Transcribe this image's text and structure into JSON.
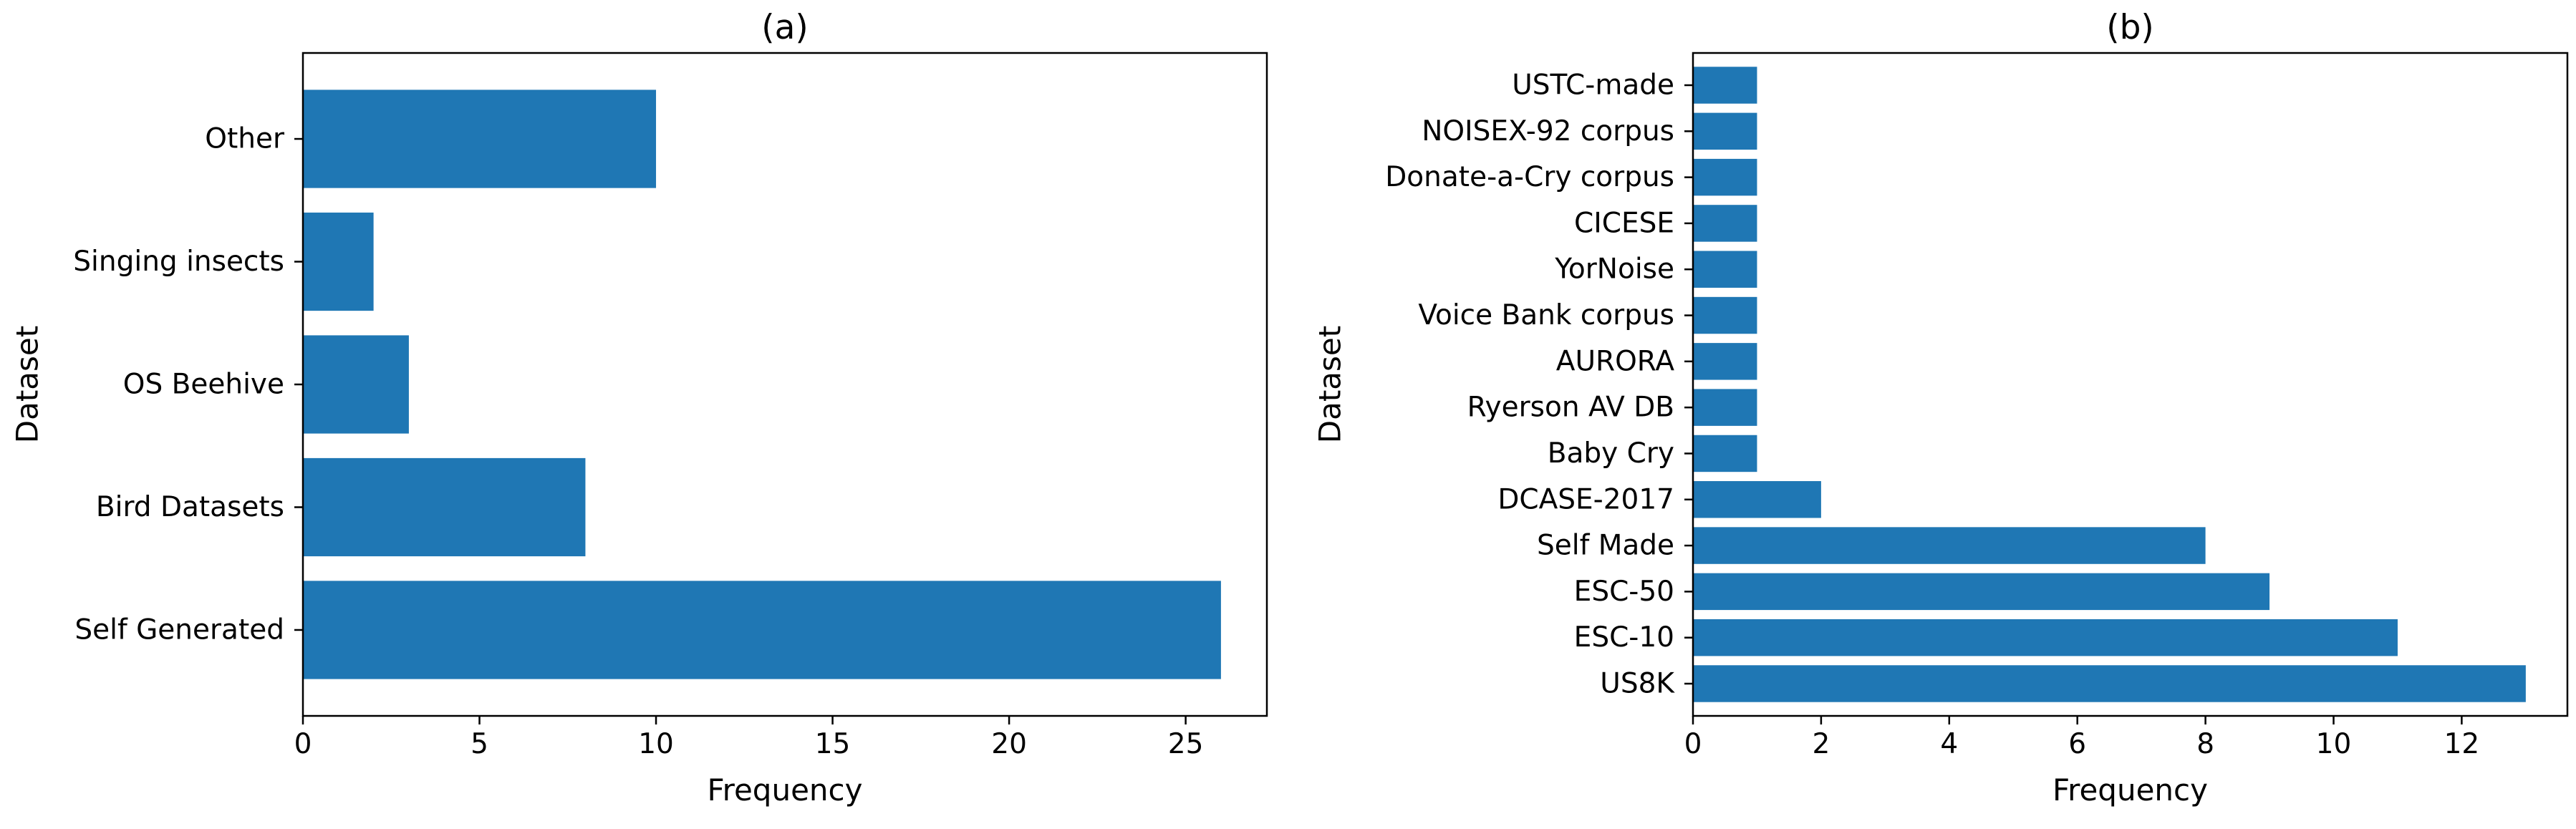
{
  "chart_data": [
    {
      "type": "bar",
      "orientation": "horizontal",
      "title": "(a)",
      "xlabel": "Frequency",
      "ylabel": "Dataset",
      "categories": [
        "Self Generated",
        "Bird Datasets",
        "OS Beehive",
        "Singing insects",
        "Other"
      ],
      "values": [
        26,
        8,
        3,
        2,
        10
      ],
      "xlim": [
        0,
        27.3
      ],
      "xticks": [
        "0",
        "5",
        "10",
        "15",
        "20",
        "25"
      ],
      "grid": false,
      "bar_color": "#1f77b4"
    },
    {
      "type": "bar",
      "orientation": "horizontal",
      "title": "(b)",
      "xlabel": "Frequency",
      "ylabel": "Dataset",
      "categories": [
        "US8K",
        "ESC-10",
        "ESC-50",
        "Self Made",
        "DCASE-2017",
        "Baby Cry",
        "Ryerson AV DB",
        "AURORA",
        "Voice Bank corpus",
        "YorNoise",
        "CICESE",
        "Donate-a-Cry corpus",
        "NOISEX-92 corpus",
        "USTC-made"
      ],
      "values": [
        13,
        11,
        9,
        8,
        2,
        1,
        1,
        1,
        1,
        1,
        1,
        1,
        1,
        1
      ],
      "xlim": [
        0,
        13.65
      ],
      "xticks": [
        "0",
        "2",
        "4",
        "6",
        "8",
        "10",
        "12"
      ],
      "grid": false,
      "bar_color": "#1f77b4"
    }
  ]
}
